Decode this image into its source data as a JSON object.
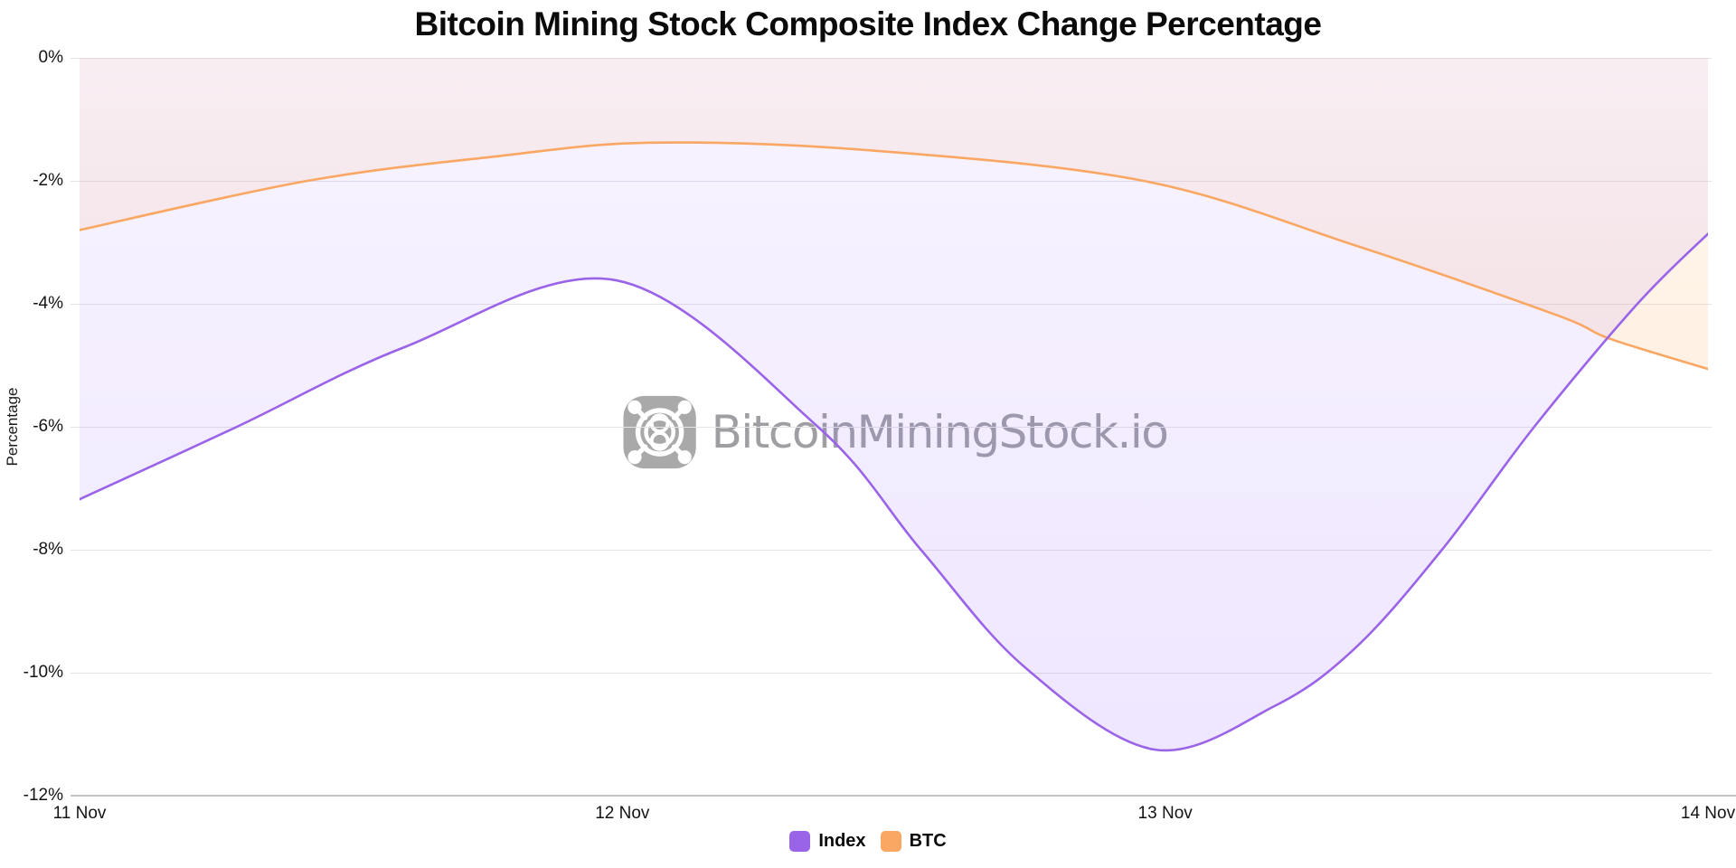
{
  "watermark": {
    "text": "BitcoinMiningStock.io",
    "logo_color": "#a9a9a9",
    "text_color": "#9f9fa3"
  },
  "chart_data": {
    "type": "area",
    "title": "Bitcoin Mining Stock Composite Index Change Percentage",
    "xlabel": "",
    "ylabel": "Percentage",
    "x_tick_labels": [
      "11 Nov",
      "12 Nov",
      "13 Nov",
      "14 Nov"
    ],
    "y_tick_labels": [
      "0%",
      "-2%",
      "-4%",
      "-6%",
      "-8%",
      "-10%",
      "-12%"
    ],
    "y_tick_values": [
      0,
      -2,
      -4,
      -6,
      -8,
      -10,
      -12
    ],
    "ylim": [
      -12,
      0
    ],
    "xlim": [
      11,
      14
    ],
    "grid": "horizontal",
    "legend_position": "bottom-center",
    "units": "percent change",
    "series": [
      {
        "name": "Index",
        "color": "#9a64e8",
        "fill_top": "rgba(153,102,255,0.07)",
        "fill_bottom": "rgba(153,102,255,0.16)",
        "x": [
          11.0,
          11.29,
          11.6,
          11.99,
          12.36,
          12.55,
          12.74,
          12.98,
          13.2,
          13.35,
          13.51,
          13.68,
          13.87,
          14.0
        ],
        "y": [
          -7.18,
          -6.0,
          -4.7,
          -3.62,
          -6.0,
          -8.0,
          -9.9,
          -11.25,
          -10.55,
          -9.6,
          -8.0,
          -6.0,
          -4.0,
          -2.86
        ]
      },
      {
        "name": "BTC",
        "color": "#f9a763",
        "fill_top": "rgba(255,159,64,0.07)",
        "fill_bottom": "rgba(255,159,64,0.15)",
        "x": [
          11.0,
          11.42,
          11.77,
          12.05,
          12.45,
          12.96,
          13.35,
          13.72,
          13.82,
          14.0
        ],
        "y": [
          -2.8,
          -2.0,
          -1.6,
          -1.38,
          -1.5,
          -2.0,
          -3.05,
          -4.18,
          -4.57,
          -5.06
        ]
      }
    ]
  }
}
